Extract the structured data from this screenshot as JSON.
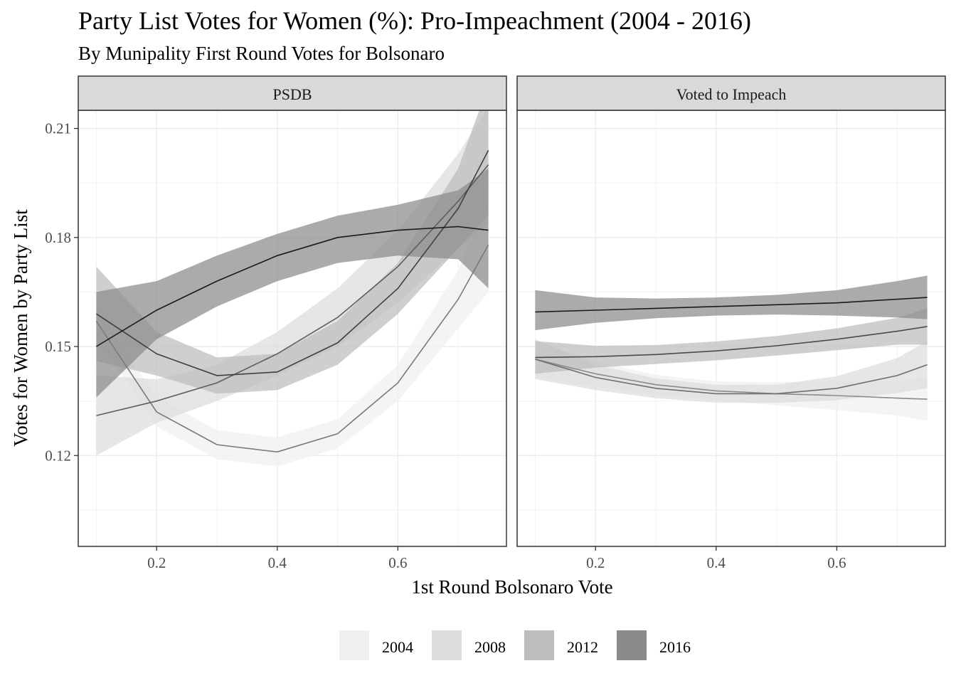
{
  "title": "Party List Votes for Women (%): Pro-Impeachment (2004 - 2016)",
  "subtitle": "By Munipality First Round Votes for Bolsonaro",
  "chart_data": {
    "type": "line",
    "xlabel": "1st Round Bolsonaro Vote",
    "ylabel": "Votes for Women by Party List",
    "xlim": [
      0.07,
      0.78
    ],
    "ylim": [
      0.095,
      0.215
    ],
    "x_ticks": [
      0.2,
      0.4,
      0.6
    ],
    "x_tick_labels": [
      "0.2",
      "0.4",
      "0.6"
    ],
    "y_ticks": [
      0.12,
      0.15,
      0.18,
      0.21
    ],
    "y_tick_labels": [
      "0.12",
      "0.15",
      "0.18",
      "0.21"
    ],
    "grid": true,
    "legend_position": "bottom",
    "legend": [
      {
        "label": "2004",
        "color": "#f0f0f0"
      },
      {
        "label": "2008",
        "color": "#dcdcdc"
      },
      {
        "label": "2012",
        "color": "#bdbdbd"
      },
      {
        "label": "2016",
        "color": "#8a8a8a"
      }
    ],
    "panels": [
      {
        "label": "PSDB",
        "series": [
          {
            "name": "2004",
            "fill": "#f0f0f0",
            "line": "#7a7a7a",
            "x": [
              0.1,
              0.2,
              0.3,
              0.4,
              0.5,
              0.6,
              0.7,
              0.75
            ],
            "y": [
              0.157,
              0.132,
              0.123,
              0.121,
              0.126,
              0.14,
              0.163,
              0.178
            ],
            "lower": [
              0.153,
              0.128,
              0.119,
              0.117,
              0.122,
              0.135,
              0.155,
              0.165
            ],
            "upper": [
              0.161,
              0.136,
              0.127,
              0.125,
              0.13,
              0.145,
              0.171,
              0.191
            ]
          },
          {
            "name": "2008",
            "fill": "#dcdcdc",
            "line": "#5e5e5e",
            "x": [
              0.1,
              0.2,
              0.3,
              0.4,
              0.5,
              0.6,
              0.7,
              0.75
            ],
            "y": [
              0.131,
              0.135,
              0.14,
              0.148,
              0.158,
              0.172,
              0.19,
              0.2
            ],
            "lower": [
              0.12,
              0.129,
              0.135,
              0.142,
              0.15,
              0.162,
              0.177,
              0.184
            ],
            "upper": [
              0.142,
              0.141,
              0.145,
              0.154,
              0.166,
              0.182,
              0.203,
              0.216
            ]
          },
          {
            "name": "2012",
            "fill": "#bdbdbd",
            "line": "#404040",
            "x": [
              0.1,
              0.2,
              0.3,
              0.4,
              0.5,
              0.6,
              0.7,
              0.75
            ],
            "y": [
              0.159,
              0.148,
              0.142,
              0.143,
              0.151,
              0.166,
              0.188,
              0.204
            ],
            "lower": [
              0.146,
              0.142,
              0.137,
              0.138,
              0.145,
              0.159,
              0.177,
              0.186
            ],
            "upper": [
              0.172,
              0.154,
              0.147,
              0.148,
              0.157,
              0.173,
              0.199,
              0.222
            ]
          },
          {
            "name": "2016",
            "fill": "#8a8a8a",
            "line": "#1a1a1a",
            "x": [
              0.1,
              0.2,
              0.3,
              0.4,
              0.5,
              0.6,
              0.7,
              0.75
            ],
            "y": [
              0.15,
              0.16,
              0.168,
              0.175,
              0.18,
              0.182,
              0.183,
              0.182
            ],
            "lower": [
              0.136,
              0.152,
              0.161,
              0.168,
              0.173,
              0.175,
              0.174,
              0.166
            ],
            "upper": [
              0.165,
              0.168,
              0.175,
              0.181,
              0.186,
              0.189,
              0.193,
              0.199
            ]
          }
        ]
      },
      {
        "label": "Voted to Impeach",
        "series": [
          {
            "name": "2004",
            "fill": "#f0f0f0",
            "line": "#8a8a8a",
            "x": [
              0.1,
              0.2,
              0.3,
              0.4,
              0.5,
              0.6,
              0.7,
              0.75
            ],
            "y": [
              0.1465,
              0.1425,
              0.1395,
              0.1378,
              0.137,
              0.1365,
              0.1358,
              0.1355
            ],
            "lower": [
              0.1415,
              0.139,
              0.1368,
              0.1352,
              0.1338,
              0.1325,
              0.131,
              0.1295
            ],
            "upper": [
              0.1515,
              0.146,
              0.1422,
              0.1404,
              0.1402,
              0.1405,
              0.1406,
              0.1415
            ]
          },
          {
            "name": "2008",
            "fill": "#dcdcdc",
            "line": "#6e6e6e",
            "x": [
              0.1,
              0.2,
              0.3,
              0.4,
              0.5,
              0.6,
              0.7,
              0.75
            ],
            "y": [
              0.1465,
              0.1415,
              0.1385,
              0.137,
              0.137,
              0.1385,
              0.142,
              0.145
            ],
            "lower": [
              0.141,
              0.138,
              0.1358,
              0.1345,
              0.1345,
              0.1352,
              0.1372,
              0.1385
            ],
            "upper": [
              0.152,
              0.145,
              0.1412,
              0.1395,
              0.1395,
              0.1418,
              0.1468,
              0.1515
            ]
          },
          {
            "name": "2012",
            "fill": "#bdbdbd",
            "line": "#4a4a4a",
            "x": [
              0.1,
              0.2,
              0.3,
              0.4,
              0.5,
              0.6,
              0.7,
              0.75
            ],
            "y": [
              0.147,
              0.1472,
              0.1478,
              0.1488,
              0.1502,
              0.152,
              0.1542,
              0.1555
            ],
            "lower": [
              0.1425,
              0.1442,
              0.1452,
              0.1462,
              0.1475,
              0.149,
              0.1505,
              0.1505
            ],
            "upper": [
              0.1515,
              0.1502,
              0.1504,
              0.1514,
              0.1529,
              0.155,
              0.1579,
              0.1605
            ]
          },
          {
            "name": "2016",
            "fill": "#8a8a8a",
            "line": "#1a1a1a",
            "x": [
              0.1,
              0.2,
              0.3,
              0.4,
              0.5,
              0.6,
              0.7,
              0.75
            ],
            "y": [
              0.1595,
              0.16,
              0.1605,
              0.161,
              0.1615,
              0.162,
              0.163,
              0.1635
            ],
            "lower": [
              0.1545,
              0.1565,
              0.1578,
              0.1585,
              0.1588,
              0.1585,
              0.158,
              0.1575
            ],
            "upper": [
              0.1655,
              0.1635,
              0.1632,
              0.1635,
              0.1642,
              0.1655,
              0.168,
              0.1695
            ]
          }
        ]
      }
    ]
  }
}
